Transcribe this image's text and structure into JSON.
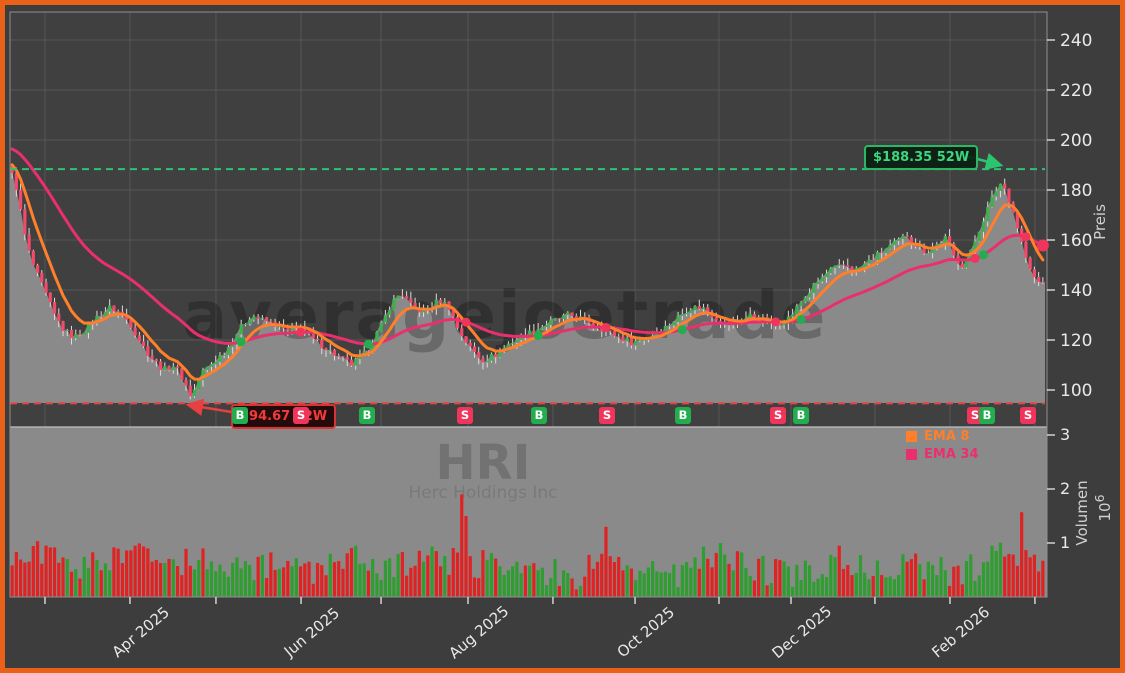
{
  "window": {
    "border_color": "#e96118",
    "background": "#3d3d3d"
  },
  "watermarks": {
    "main": "averagejoetrade",
    "symbol": "HRI",
    "company": "Herc Holdings Inc"
  },
  "annotations": {
    "high_52w": {
      "label": "$188.35 52W",
      "price": 188.35,
      "color": "#3fd57f",
      "border": "#2bb864",
      "bg": "rgba(8,30,16,0.9)"
    },
    "low_52w": {
      "label": "$94.67 52W",
      "price": 94.67,
      "color": "#f23b3b",
      "border": "#d93434",
      "bg": "rgba(34,7,7,0.92)"
    }
  },
  "legend": [
    {
      "label": "EMA 8",
      "color": "#ff7f2a"
    },
    {
      "label": "EMA 34",
      "color": "#ea2f6d"
    }
  ],
  "axes": {
    "price_label": "Preis",
    "volume_label": "Volumen",
    "volume_scale_base": "10",
    "volume_scale_exp": "6",
    "price_ticks": [
      100,
      120,
      140,
      160,
      180,
      200,
      220,
      240
    ],
    "volume_ticks": [
      1,
      2,
      3
    ]
  },
  "chart_data": {
    "type": "candlestick+volume",
    "symbol": "HRI",
    "company": "Herc Holdings Inc",
    "bar_count": 244,
    "price_axis": {
      "ticks": [
        100,
        120,
        140,
        160,
        180,
        200,
        220,
        240
      ],
      "label": "Preis"
    },
    "volume_axis": {
      "ticks_millions": [
        1,
        2,
        3
      ],
      "label": "Volumen",
      "unit_exponent": 6
    },
    "high_52w": 188.35,
    "low_52w": 94.67,
    "ema_periods": [
      8,
      34
    ],
    "x_months": [
      {
        "f": 0.0338,
        "label": ""
      },
      {
        "f": 0.1159,
        "label": "Apr 2025"
      },
      {
        "f": 0.199,
        "label": ""
      },
      {
        "f": 0.2812,
        "label": "Jun 2025"
      },
      {
        "f": 0.3585,
        "label": ""
      },
      {
        "f": 0.4425,
        "label": "Aug 2025"
      },
      {
        "f": 0.5246,
        "label": ""
      },
      {
        "f": 0.6039,
        "label": "Oct 2025"
      },
      {
        "f": 0.685,
        "label": ""
      },
      {
        "f": 0.7546,
        "label": "Dec 2025"
      },
      {
        "f": 0.8357,
        "label": ""
      },
      {
        "f": 0.9082,
        "label": "Feb 2026"
      },
      {
        "f": 0.9903,
        "label": ""
      }
    ],
    "close_anchors": [
      [
        0.002,
        186
      ],
      [
        0.008,
        172
      ],
      [
        0.014,
        158
      ],
      [
        0.022,
        148
      ],
      [
        0.031,
        140
      ],
      [
        0.041,
        130
      ],
      [
        0.05,
        124
      ],
      [
        0.06,
        121
      ],
      [
        0.07,
        124
      ],
      [
        0.082,
        129
      ],
      [
        0.095,
        133
      ],
      [
        0.104,
        131
      ],
      [
        0.114,
        127
      ],
      [
        0.126,
        118
      ],
      [
        0.137,
        112
      ],
      [
        0.147,
        108
      ],
      [
        0.157,
        110
      ],
      [
        0.166,
        104
      ],
      [
        0.174,
        97
      ],
      [
        0.184,
        107
      ],
      [
        0.195,
        111
      ],
      [
        0.208,
        116
      ],
      [
        0.22,
        124
      ],
      [
        0.232,
        130
      ],
      [
        0.243,
        128
      ],
      [
        0.256,
        126
      ],
      [
        0.269,
        123
      ],
      [
        0.28,
        126
      ],
      [
        0.292,
        120
      ],
      [
        0.304,
        117
      ],
      [
        0.317,
        113
      ],
      [
        0.33,
        110
      ],
      [
        0.343,
        115
      ],
      [
        0.356,
        124
      ],
      [
        0.367,
        134
      ],
      [
        0.377,
        139
      ],
      [
        0.388,
        133
      ],
      [
        0.401,
        131
      ],
      [
        0.414,
        136
      ],
      [
        0.423,
        134
      ],
      [
        0.433,
        124
      ],
      [
        0.444,
        117
      ],
      [
        0.456,
        112
      ],
      [
        0.469,
        114
      ],
      [
        0.483,
        119
      ],
      [
        0.498,
        122
      ],
      [
        0.512,
        125
      ],
      [
        0.527,
        128
      ],
      [
        0.541,
        130
      ],
      [
        0.556,
        128
      ],
      [
        0.57,
        125
      ],
      [
        0.584,
        122
      ],
      [
        0.601,
        119
      ],
      [
        0.616,
        121
      ],
      [
        0.63,
        124
      ],
      [
        0.643,
        128
      ],
      [
        0.657,
        133
      ],
      [
        0.67,
        133
      ],
      [
        0.682,
        129
      ],
      [
        0.694,
        126
      ],
      [
        0.705,
        127
      ],
      [
        0.717,
        130
      ],
      [
        0.729,
        128
      ],
      [
        0.74,
        126
      ],
      [
        0.754,
        129
      ],
      [
        0.767,
        136
      ],
      [
        0.781,
        143
      ],
      [
        0.794,
        148
      ],
      [
        0.808,
        150
      ],
      [
        0.819,
        148
      ],
      [
        0.833,
        152
      ],
      [
        0.846,
        156
      ],
      [
        0.858,
        159
      ],
      [
        0.868,
        162
      ],
      [
        0.877,
        158
      ],
      [
        0.887,
        155
      ],
      [
        0.897,
        158
      ],
      [
        0.906,
        161
      ],
      [
        0.914,
        153
      ],
      [
        0.922,
        150
      ],
      [
        0.93,
        155
      ],
      [
        0.939,
        165
      ],
      [
        0.949,
        175
      ],
      [
        0.958,
        183
      ],
      [
        0.964,
        180
      ],
      [
        0.972,
        170
      ],
      [
        0.98,
        158
      ],
      [
        0.987,
        148
      ],
      [
        0.995,
        143
      ]
    ],
    "volume_anchors_millions": [
      [
        0,
        0.55
      ],
      [
        0.03,
        0.8
      ],
      [
        0.06,
        0.5
      ],
      [
        0.09,
        0.6
      ],
      [
        0.12,
        0.85
      ],
      [
        0.15,
        0.5
      ],
      [
        0.17,
        0.75
      ],
      [
        0.2,
        0.55
      ],
      [
        0.23,
        0.5
      ],
      [
        0.26,
        0.6
      ],
      [
        0.3,
        0.5
      ],
      [
        0.33,
        0.8
      ],
      [
        0.36,
        0.5
      ],
      [
        0.39,
        0.65
      ],
      [
        0.42,
        0.7
      ],
      [
        0.45,
        0.6
      ],
      [
        0.49,
        0.6
      ],
      [
        0.52,
        0.45
      ],
      [
        0.545,
        0.4
      ],
      [
        0.57,
        0.6
      ],
      [
        0.6,
        0.55
      ],
      [
        0.62,
        0.5
      ],
      [
        0.65,
        0.45
      ],
      [
        0.675,
        0.7
      ],
      [
        0.7,
        0.6
      ],
      [
        0.72,
        0.5
      ],
      [
        0.75,
        0.45
      ],
      [
        0.78,
        0.5
      ],
      [
        0.8,
        0.7
      ],
      [
        0.83,
        0.5
      ],
      [
        0.85,
        0.45
      ],
      [
        0.87,
        0.55
      ],
      [
        0.9,
        0.5
      ],
      [
        0.92,
        0.45
      ],
      [
        0.94,
        0.6
      ],
      [
        0.96,
        0.75
      ],
      [
        0.985,
        0.8
      ],
      [
        1,
        0.45
      ]
    ],
    "volume_spikes": [
      {
        "f": 0.033,
        "v": 0.95,
        "dir": "down"
      },
      {
        "f": 0.118,
        "v": 0.95,
        "dir": "down"
      },
      {
        "f": 0.185,
        "v": 0.9,
        "dir": "down"
      },
      {
        "f": 0.333,
        "v": 0.95,
        "dir": "up"
      },
      {
        "f": 0.41,
        "v": 0.85,
        "dir": "down"
      },
      {
        "f": 0.435,
        "v": 1.9,
        "dir": "down"
      },
      {
        "f": 0.441,
        "v": 1.5,
        "dir": "down"
      },
      {
        "f": 0.577,
        "v": 1.3,
        "dir": "down"
      },
      {
        "f": 0.688,
        "v": 1.0,
        "dir": "up"
      },
      {
        "f": 0.803,
        "v": 0.95,
        "dir": "down"
      },
      {
        "f": 0.952,
        "v": 0.95,
        "dir": "up"
      },
      {
        "f": 0.978,
        "v": 1.57,
        "dir": "down"
      }
    ],
    "signals": [
      {
        "type": "B",
        "f": 0.2222
      },
      {
        "type": "S",
        "f": 0.2812
      },
      {
        "type": "B",
        "f": 0.3449
      },
      {
        "type": "S",
        "f": 0.4396
      },
      {
        "type": "B",
        "f": 0.5111
      },
      {
        "type": "S",
        "f": 0.5768
      },
      {
        "type": "B",
        "f": 0.6502
      },
      {
        "type": "S",
        "f": 0.742
      },
      {
        "type": "B",
        "f": 0.7643
      },
      {
        "type": "S",
        "f": 0.9324
      },
      {
        "type": "B",
        "f": 0.944
      },
      {
        "type": "S",
        "f": 0.9836
      }
    ],
    "colors": {
      "up": "#3bb24a",
      "down": "#f24a68",
      "wick": "#dcdcdc",
      "vol_up": "#2e9e30",
      "vol_down": "#e02222",
      "fill": "#8a8a8a",
      "panel": "#404040",
      "grid": "#565656",
      "spine": "#909090",
      "tick_text": "#e9e9e9",
      "ema8": "#ff7f2a",
      "ema34": "#ea2f6d",
      "hi_line": "#2bc46f",
      "lo_line": "#e84040",
      "buy_badge": "#23ad4e",
      "sell_badge": "#f0355c",
      "watermark_main": "rgba(0,0,0,0.24)",
      "watermark_symbol": "rgba(0,0,0,0.17)",
      "watermark_company": "rgba(0,0,0,0.12)"
    }
  }
}
